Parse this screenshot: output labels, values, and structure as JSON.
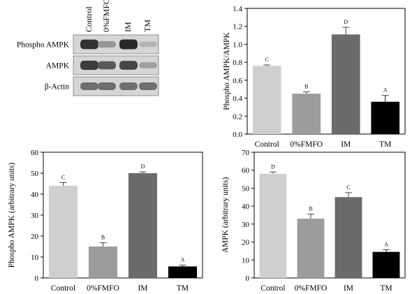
{
  "blot": {
    "lanes": [
      "Control",
      "0%FMFO",
      "IM",
      "TM"
    ],
    "rows": [
      {
        "label": "Phospho AMPK",
        "intensities": [
          0.85,
          0.35,
          0.9,
          0.2
        ]
      },
      {
        "label": "AMPK",
        "intensities": [
          0.8,
          0.65,
          0.75,
          0.3
        ]
      },
      {
        "label": "β-Actin",
        "intensities": [
          0.55,
          0.55,
          0.55,
          0.55
        ]
      }
    ]
  },
  "chart_data": [
    {
      "type": "bar",
      "categories": [
        "Control",
        "0%FMFO",
        "IM",
        "TM"
      ],
      "values": [
        0.76,
        0.45,
        1.11,
        0.36
      ],
      "errors": [
        0.01,
        0.02,
        0.08,
        0.07
      ],
      "letters": [
        "C",
        "B",
        "D",
        "A"
      ],
      "colors": [
        "#cfcfcf",
        "#9c9c9c",
        "#6b6b6b",
        "#000000"
      ],
      "title": "",
      "xlabel": "",
      "ylabel": "Phospho AMPK/AMPK",
      "ylim": [
        0,
        1.4
      ],
      "yticks": [
        "0.0",
        "0.2",
        "0.4",
        "0.6",
        "0.8",
        "1.0",
        "1.2",
        "1.4"
      ],
      "grid": false
    },
    {
      "type": "bar",
      "categories": [
        "Control",
        "0%FMFO",
        "IM",
        "TM"
      ],
      "values": [
        44,
        15,
        50,
        5.5
      ],
      "errors": [
        1.5,
        1.8,
        0.6,
        0.6
      ],
      "letters": [
        "C",
        "B",
        "D",
        "A"
      ],
      "colors": [
        "#cfcfcf",
        "#9c9c9c",
        "#6b6b6b",
        "#000000"
      ],
      "title": "",
      "xlabel": "",
      "ylabel": "Phospho AMPK  (arbitrary units)",
      "ylim": [
        0,
        60
      ],
      "yticks": [
        "0",
        "10",
        "20",
        "30",
        "40",
        "50",
        "60"
      ],
      "grid": false
    },
    {
      "type": "bar",
      "categories": [
        "Control",
        "0%FMFO",
        "IM",
        "TM"
      ],
      "values": [
        58,
        33,
        45,
        14.5
      ],
      "errors": [
        1.0,
        2.5,
        2.5,
        1.2
      ],
      "letters": [
        "D",
        "B",
        "C",
        "A"
      ],
      "colors": [
        "#cfcfcf",
        "#9c9c9c",
        "#6b6b6b",
        "#000000"
      ],
      "title": "",
      "xlabel": "",
      "ylabel": "AMPK (arbitrary units)",
      "ylim": [
        0,
        70
      ],
      "yticks": [
        "0",
        "10",
        "20",
        "30",
        "40",
        "50",
        "60",
        "70"
      ],
      "grid": false
    }
  ]
}
